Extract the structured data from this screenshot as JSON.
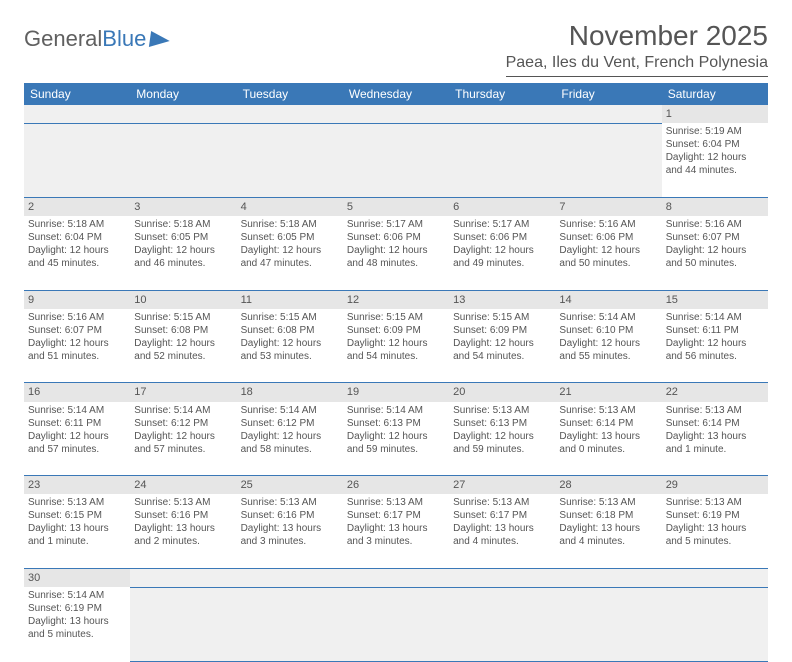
{
  "brand": {
    "w1": "General",
    "w2": "Blue"
  },
  "header": {
    "month_title": "November 2025",
    "location": "Paea, Iles du Vent, French Polynesia"
  },
  "colors": {
    "accent": "#3a78b7",
    "header_text": "#ffffff",
    "body_text": "#555555",
    "daynum_bg": "#e6e6e6",
    "empty_bg": "#f0f0f0",
    "page_bg": "#ffffff"
  },
  "day_names": [
    "Sunday",
    "Monday",
    "Tuesday",
    "Wednesday",
    "Thursday",
    "Friday",
    "Saturday"
  ],
  "weeks": [
    [
      null,
      null,
      null,
      null,
      null,
      null,
      {
        "n": "1",
        "sr": "Sunrise: 5:19 AM",
        "ss": "Sunset: 6:04 PM",
        "d1": "Daylight: 12 hours",
        "d2": "and 44 minutes."
      }
    ],
    [
      {
        "n": "2",
        "sr": "Sunrise: 5:18 AM",
        "ss": "Sunset: 6:04 PM",
        "d1": "Daylight: 12 hours",
        "d2": "and 45 minutes."
      },
      {
        "n": "3",
        "sr": "Sunrise: 5:18 AM",
        "ss": "Sunset: 6:05 PM",
        "d1": "Daylight: 12 hours",
        "d2": "and 46 minutes."
      },
      {
        "n": "4",
        "sr": "Sunrise: 5:18 AM",
        "ss": "Sunset: 6:05 PM",
        "d1": "Daylight: 12 hours",
        "d2": "and 47 minutes."
      },
      {
        "n": "5",
        "sr": "Sunrise: 5:17 AM",
        "ss": "Sunset: 6:06 PM",
        "d1": "Daylight: 12 hours",
        "d2": "and 48 minutes."
      },
      {
        "n": "6",
        "sr": "Sunrise: 5:17 AM",
        "ss": "Sunset: 6:06 PM",
        "d1": "Daylight: 12 hours",
        "d2": "and 49 minutes."
      },
      {
        "n": "7",
        "sr": "Sunrise: 5:16 AM",
        "ss": "Sunset: 6:06 PM",
        "d1": "Daylight: 12 hours",
        "d2": "and 50 minutes."
      },
      {
        "n": "8",
        "sr": "Sunrise: 5:16 AM",
        "ss": "Sunset: 6:07 PM",
        "d1": "Daylight: 12 hours",
        "d2": "and 50 minutes."
      }
    ],
    [
      {
        "n": "9",
        "sr": "Sunrise: 5:16 AM",
        "ss": "Sunset: 6:07 PM",
        "d1": "Daylight: 12 hours",
        "d2": "and 51 minutes."
      },
      {
        "n": "10",
        "sr": "Sunrise: 5:15 AM",
        "ss": "Sunset: 6:08 PM",
        "d1": "Daylight: 12 hours",
        "d2": "and 52 minutes."
      },
      {
        "n": "11",
        "sr": "Sunrise: 5:15 AM",
        "ss": "Sunset: 6:08 PM",
        "d1": "Daylight: 12 hours",
        "d2": "and 53 minutes."
      },
      {
        "n": "12",
        "sr": "Sunrise: 5:15 AM",
        "ss": "Sunset: 6:09 PM",
        "d1": "Daylight: 12 hours",
        "d2": "and 54 minutes."
      },
      {
        "n": "13",
        "sr": "Sunrise: 5:15 AM",
        "ss": "Sunset: 6:09 PM",
        "d1": "Daylight: 12 hours",
        "d2": "and 54 minutes."
      },
      {
        "n": "14",
        "sr": "Sunrise: 5:14 AM",
        "ss": "Sunset: 6:10 PM",
        "d1": "Daylight: 12 hours",
        "d2": "and 55 minutes."
      },
      {
        "n": "15",
        "sr": "Sunrise: 5:14 AM",
        "ss": "Sunset: 6:11 PM",
        "d1": "Daylight: 12 hours",
        "d2": "and 56 minutes."
      }
    ],
    [
      {
        "n": "16",
        "sr": "Sunrise: 5:14 AM",
        "ss": "Sunset: 6:11 PM",
        "d1": "Daylight: 12 hours",
        "d2": "and 57 minutes."
      },
      {
        "n": "17",
        "sr": "Sunrise: 5:14 AM",
        "ss": "Sunset: 6:12 PM",
        "d1": "Daylight: 12 hours",
        "d2": "and 57 minutes."
      },
      {
        "n": "18",
        "sr": "Sunrise: 5:14 AM",
        "ss": "Sunset: 6:12 PM",
        "d1": "Daylight: 12 hours",
        "d2": "and 58 minutes."
      },
      {
        "n": "19",
        "sr": "Sunrise: 5:14 AM",
        "ss": "Sunset: 6:13 PM",
        "d1": "Daylight: 12 hours",
        "d2": "and 59 minutes."
      },
      {
        "n": "20",
        "sr": "Sunrise: 5:13 AM",
        "ss": "Sunset: 6:13 PM",
        "d1": "Daylight: 12 hours",
        "d2": "and 59 minutes."
      },
      {
        "n": "21",
        "sr": "Sunrise: 5:13 AM",
        "ss": "Sunset: 6:14 PM",
        "d1": "Daylight: 13 hours",
        "d2": "and 0 minutes."
      },
      {
        "n": "22",
        "sr": "Sunrise: 5:13 AM",
        "ss": "Sunset: 6:14 PM",
        "d1": "Daylight: 13 hours",
        "d2": "and 1 minute."
      }
    ],
    [
      {
        "n": "23",
        "sr": "Sunrise: 5:13 AM",
        "ss": "Sunset: 6:15 PM",
        "d1": "Daylight: 13 hours",
        "d2": "and 1 minute."
      },
      {
        "n": "24",
        "sr": "Sunrise: 5:13 AM",
        "ss": "Sunset: 6:16 PM",
        "d1": "Daylight: 13 hours",
        "d2": "and 2 minutes."
      },
      {
        "n": "25",
        "sr": "Sunrise: 5:13 AM",
        "ss": "Sunset: 6:16 PM",
        "d1": "Daylight: 13 hours",
        "d2": "and 3 minutes."
      },
      {
        "n": "26",
        "sr": "Sunrise: 5:13 AM",
        "ss": "Sunset: 6:17 PM",
        "d1": "Daylight: 13 hours",
        "d2": "and 3 minutes."
      },
      {
        "n": "27",
        "sr": "Sunrise: 5:13 AM",
        "ss": "Sunset: 6:17 PM",
        "d1": "Daylight: 13 hours",
        "d2": "and 4 minutes."
      },
      {
        "n": "28",
        "sr": "Sunrise: 5:13 AM",
        "ss": "Sunset: 6:18 PM",
        "d1": "Daylight: 13 hours",
        "d2": "and 4 minutes."
      },
      {
        "n": "29",
        "sr": "Sunrise: 5:13 AM",
        "ss": "Sunset: 6:19 PM",
        "d1": "Daylight: 13 hours",
        "d2": "and 5 minutes."
      }
    ],
    [
      {
        "n": "30",
        "sr": "Sunrise: 5:14 AM",
        "ss": "Sunset: 6:19 PM",
        "d1": "Daylight: 13 hours",
        "d2": "and 5 minutes."
      },
      null,
      null,
      null,
      null,
      null,
      null
    ]
  ]
}
